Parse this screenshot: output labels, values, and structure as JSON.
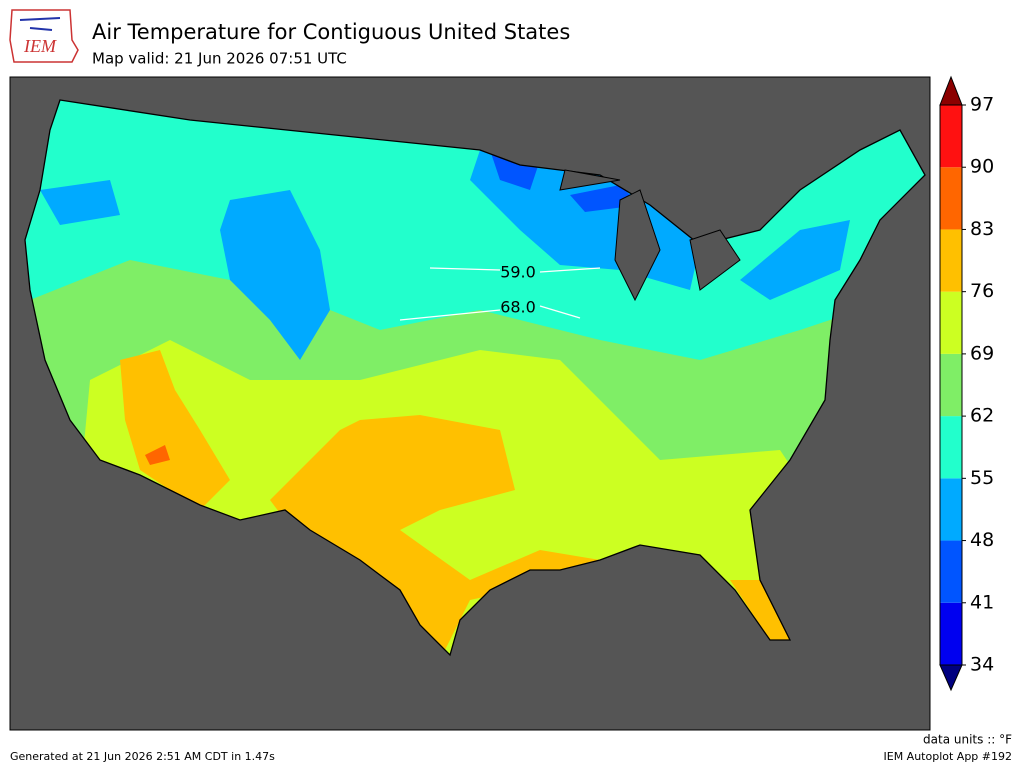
{
  "header": {
    "logo": "IEM",
    "title": "Air Temperature for Contiguous United States",
    "subtitle": "Map valid: 21 Jun 2026 07:51 UTC"
  },
  "colorbar": {
    "ticks": [
      34,
      41,
      48,
      55,
      62,
      69,
      76,
      83,
      90,
      97
    ],
    "colors": [
      "#0000f0",
      "#0055ff",
      "#00aaff",
      "#22ffcc",
      "#7fee66",
      "#ccff22",
      "#ffc000",
      "#ff6600",
      "#ff1111"
    ],
    "under_color": "#000080",
    "over_color": "#8b0000"
  },
  "contour_labels": [
    {
      "value": 59,
      "label": "59.0"
    },
    {
      "value": 68,
      "label": "68.0"
    }
  ],
  "footer": {
    "units": "data units :: °F",
    "generated": "Generated at 21 Jun 2026 2:51 AM CDT in 1.47s",
    "app": "IEM Autoplot App #192"
  }
}
